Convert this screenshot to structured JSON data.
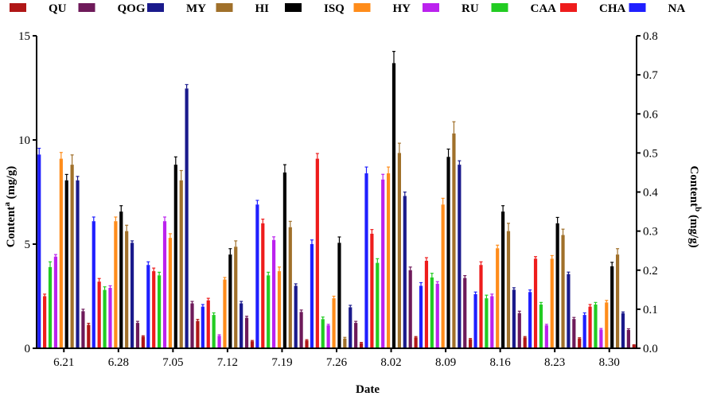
{
  "chart_data": {
    "type": "bar",
    "xlabel": "Date",
    "ylabel_left": {
      "main": "Content",
      "sup": "a",
      "unit": " (mg/g)"
    },
    "ylabel_right": {
      "main": "Content",
      "sup": "b",
      "unit": " (mg/g)"
    },
    "ylim_left": [
      0,
      15
    ],
    "ylim_right": [
      0,
      0.8
    ],
    "left_ticks": [
      "0",
      "5",
      "10",
      "15"
    ],
    "right_ticks": [
      "0.0",
      "0.1",
      "0.2",
      "0.3",
      "0.4",
      "0.5",
      "0.6",
      "0.7",
      "0.8"
    ],
    "legend_position": "top",
    "categories": [
      "6.21",
      "6.28",
      "7.05",
      "7.12",
      "7.19",
      "7.26",
      "8.02",
      "8.09",
      "8.16",
      "8.23",
      "8.30"
    ],
    "series": [
      {
        "name": "NA",
        "color": "#1f1fff",
        "axis": "left",
        "values": [
          9.3,
          6.1,
          4.0,
          2.0,
          6.9,
          5.0,
          8.4,
          3.0,
          2.6,
          2.7,
          1.6
        ],
        "errors": [
          0.3,
          0.2,
          0.15,
          0.1,
          0.2,
          0.2,
          0.3,
          0.15,
          0.1,
          0.1,
          0.1
        ]
      },
      {
        "name": "CHA",
        "color": "#ee1c1c",
        "axis": "left",
        "values": [
          2.5,
          3.2,
          3.7,
          2.3,
          6.0,
          9.1,
          5.5,
          4.2,
          4.0,
          4.3,
          2.0
        ],
        "errors": [
          0.1,
          0.15,
          0.15,
          0.1,
          0.2,
          0.25,
          0.2,
          0.15,
          0.15,
          0.1,
          0.1
        ]
      },
      {
        "name": "CAA",
        "color": "#22cc22",
        "axis": "left",
        "values": [
          3.9,
          2.8,
          3.5,
          1.6,
          3.5,
          1.4,
          4.1,
          3.4,
          2.4,
          2.1,
          2.1
        ],
        "errors": [
          0.25,
          0.15,
          0.15,
          0.1,
          0.15,
          0.1,
          0.2,
          0.2,
          0.15,
          0.1,
          0.1
        ]
      },
      {
        "name": "RU",
        "color": "#bb22ee",
        "axis": "left",
        "values": [
          4.4,
          2.9,
          6.1,
          0.6,
          5.2,
          1.1,
          8.1,
          3.1,
          2.5,
          1.1,
          0.9
        ],
        "errors": [
          0.1,
          0.1,
          0.2,
          0.05,
          0.15,
          0.05,
          0.25,
          0.1,
          0.1,
          0.05,
          0.05
        ]
      },
      {
        "name": "HY",
        "color": "#ff8c1a",
        "axis": "left",
        "values": [
          9.1,
          6.1,
          5.3,
          3.3,
          3.7,
          2.4,
          8.4,
          6.9,
          4.8,
          4.3,
          2.2
        ],
        "errors": [
          0.3,
          0.2,
          0.2,
          0.1,
          0.2,
          0.1,
          0.3,
          0.3,
          0.15,
          0.15,
          0.1
        ]
      },
      {
        "name": "ISQ",
        "color": "#000000",
        "axis": "right",
        "values": [
          0.43,
          0.35,
          0.47,
          0.24,
          0.45,
          0.27,
          0.73,
          0.49,
          0.35,
          0.32,
          0.21
        ],
        "errors": [
          0.015,
          0.015,
          0.02,
          0.015,
          0.02,
          0.015,
          0.03,
          0.02,
          0.015,
          0.015,
          0.01
        ]
      },
      {
        "name": "HI",
        "color": "#a0702a",
        "axis": "right",
        "values": [
          0.47,
          0.3,
          0.43,
          0.26,
          0.31,
          0.025,
          0.5,
          0.55,
          0.3,
          0.29,
          0.24
        ],
        "errors": [
          0.025,
          0.015,
          0.025,
          0.015,
          0.015,
          0.003,
          0.025,
          0.03,
          0.02,
          0.015,
          0.015
        ]
      },
      {
        "name": "MY",
        "color": "#1a1a8c",
        "axis": "right",
        "values": [
          0.43,
          0.27,
          0.665,
          0.115,
          0.16,
          0.105,
          0.39,
          0.47,
          0.15,
          0.19,
          0.09
        ],
        "errors": [
          0.01,
          0.005,
          0.01,
          0.005,
          0.005,
          0.005,
          0.01,
          0.01,
          0.005,
          0.005,
          0.003
        ]
      },
      {
        "name": "QOG",
        "color": "#6e1a5a",
        "axis": "right",
        "values": [
          0.095,
          0.065,
          0.115,
          0.078,
          0.093,
          0.065,
          0.2,
          0.18,
          0.09,
          0.075,
          0.047
        ],
        "errors": [
          0.005,
          0.004,
          0.005,
          0.004,
          0.005,
          0.004,
          0.008,
          0.006,
          0.005,
          0.004,
          0.003
        ]
      },
      {
        "name": "QU",
        "color": "#b01616",
        "axis": "right",
        "values": [
          0.06,
          0.03,
          0.07,
          0.018,
          0.02,
          0.013,
          0.028,
          0.023,
          0.028,
          0.025,
          0.008
        ],
        "errors": [
          0.004,
          0.002,
          0.004,
          0.002,
          0.002,
          0.002,
          0.002,
          0.002,
          0.002,
          0.002,
          0.001
        ]
      }
    ],
    "legend_order": [
      "QU",
      "QOG",
      "MY",
      "HI",
      "ISQ",
      "HY",
      "RU",
      "CAA",
      "CHA",
      "NA"
    ]
  }
}
